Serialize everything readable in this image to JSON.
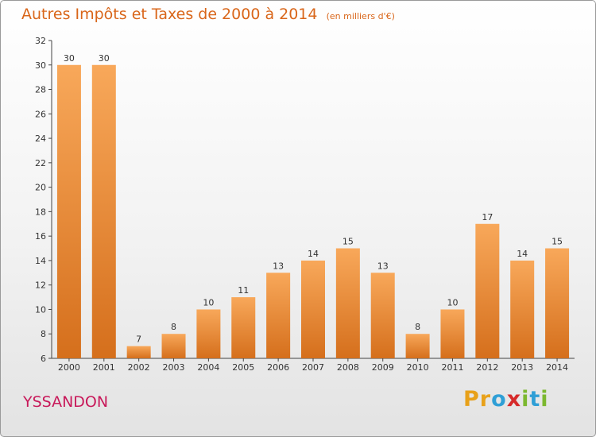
{
  "title": "Autres Impôts et Taxes de 2000 à 2014",
  "subtitle": "(en milliers d'€)",
  "place_name": "YSSANDON",
  "brand": {
    "letters": [
      "P",
      "r",
      "o",
      "x",
      "i",
      "t",
      "i"
    ],
    "colors": [
      "#e8a11a",
      "#e8a11a",
      "#2f9fd6",
      "#d62a2a",
      "#7cb82f",
      "#2f9fd6",
      "#7cb82f"
    ]
  },
  "colors": {
    "title": "#d9661a",
    "place": "#c8195a",
    "bar_top": "#f8a85a",
    "bar_bottom": "#d56f1c"
  },
  "chart_data": {
    "type": "bar",
    "title": "Autres Impôts et Taxes de 2000 à 2014",
    "subtitle": "(en milliers d'€)",
    "categories": [
      "2000",
      "2001",
      "2002",
      "2003",
      "2004",
      "2005",
      "2006",
      "2007",
      "2008",
      "2009",
      "2010",
      "2011",
      "2012",
      "2013",
      "2014"
    ],
    "values": [
      30,
      30,
      7,
      8,
      10,
      11,
      13,
      14,
      15,
      13,
      8,
      10,
      17,
      14,
      15
    ],
    "ylim": [
      6,
      32
    ],
    "yticks": [
      6,
      8,
      10,
      12,
      14,
      16,
      18,
      20,
      22,
      24,
      26,
      28,
      30,
      32
    ],
    "grid": false,
    "data_labels": true
  }
}
